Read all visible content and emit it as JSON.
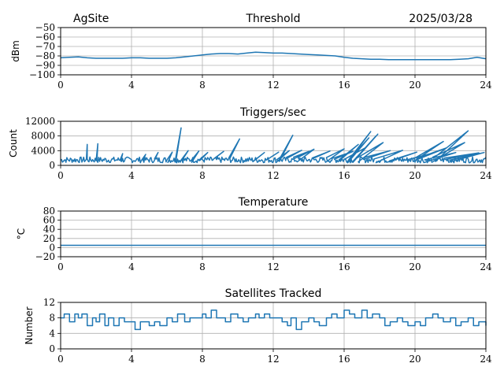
{
  "header": {
    "site": "AgSite",
    "date": "2025/03/28"
  },
  "line_color": "#1f77b4",
  "chart_data": [
    {
      "type": "line",
      "title": "Threshold",
      "ylabel": "dBm",
      "xlim": [
        0,
        24
      ],
      "ylim": [
        -100,
        -50
      ],
      "xticks": [
        0,
        4,
        8,
        12,
        16,
        20,
        24
      ],
      "xtick_labels": [
        "0",
        "4",
        "8",
        "12",
        "16",
        "20",
        "24"
      ],
      "yticks": [
        -100,
        -90,
        -80,
        -70,
        -60,
        -50
      ],
      "ytick_labels": [
        "−100",
        "−90",
        "−80",
        "−70",
        "−60",
        "−50"
      ],
      "grid": true,
      "series": [
        {
          "x": [
            0,
            0.5,
            1,
            1.5,
            2,
            2.5,
            3,
            3.5,
            4,
            4.5,
            5,
            5.5,
            6,
            6.5,
            7,
            7.5,
            8,
            8.5,
            9,
            9.5,
            10,
            10.5,
            11,
            11.5,
            12,
            12.5,
            13,
            13.5,
            14,
            14.5,
            15,
            15.5,
            16,
            16.5,
            17,
            17.5,
            18,
            18.5,
            19,
            19.5,
            20,
            20.5,
            21,
            21.5,
            22,
            22.5,
            23,
            23.5,
            24
          ],
          "y": [
            -82,
            -81.5,
            -81,
            -82,
            -82.5,
            -82.5,
            -82.5,
            -82.5,
            -82,
            -82,
            -82.5,
            -82.5,
            -82.5,
            -82,
            -81,
            -80,
            -79,
            -78,
            -77.5,
            -77.5,
            -78,
            -77,
            -76,
            -76.5,
            -77,
            -77,
            -77.5,
            -78,
            -78.5,
            -79,
            -79.5,
            -80,
            -81.5,
            -82.5,
            -83,
            -83.5,
            -83.5,
            -84,
            -84,
            -84,
            -84,
            -84,
            -84,
            -84,
            -84,
            -83.5,
            -83,
            -81.5,
            -83
          ]
        }
      ]
    },
    {
      "type": "line",
      "title": "Triggers/sec",
      "ylabel": "Count",
      "xlim": [
        0,
        24
      ],
      "ylim": [
        0,
        12000
      ],
      "xticks": [
        0,
        4,
        8,
        12,
        16,
        20,
        24
      ],
      "xtick_labels": [
        "0",
        "4",
        "8",
        "12",
        "16",
        "20",
        "24"
      ],
      "yticks": [
        0,
        4000,
        8000,
        12000
      ],
      "ytick_labels": [
        "0",
        "4000",
        "8000",
        "12000"
      ],
      "grid": true,
      "series": [
        {
          "base": 1500,
          "spikes": [
            [
              1.5,
              5700
            ],
            [
              2.1,
              5900
            ],
            [
              3.5,
              3200
            ],
            [
              4.8,
              3000
            ],
            [
              5.5,
              3500
            ],
            [
              6.3,
              3600
            ],
            [
              6.8,
              10200
            ],
            [
              7.2,
              4000
            ],
            [
              7.8,
              3900
            ],
            [
              8.3,
              3500
            ],
            [
              9.2,
              3800
            ],
            [
              10.1,
              7200
            ],
            [
              11.5,
              3500
            ],
            [
              12.3,
              3600
            ],
            [
              12.9,
              4000
            ],
            [
              13.1,
              8200
            ],
            [
              13.6,
              4100
            ],
            [
              14.0,
              3800
            ],
            [
              14.3,
              4400
            ],
            [
              15.2,
              3900
            ],
            [
              16.0,
              4500
            ],
            [
              16.5,
              3800
            ],
            [
              16.8,
              5700
            ],
            [
              17.2,
              4800
            ],
            [
              17.4,
              7500
            ],
            [
              17.5,
              9200
            ],
            [
              17.8,
              8000
            ],
            [
              17.9,
              8500
            ],
            [
              18.2,
              6200
            ],
            [
              18.6,
              4000
            ],
            [
              19.3,
              4100
            ],
            [
              20.1,
              3600
            ],
            [
              21.1,
              3500
            ],
            [
              21.6,
              6500
            ],
            [
              21.8,
              4800
            ],
            [
              22.3,
              3500
            ],
            [
              22.8,
              6200
            ],
            [
              23.0,
              9400
            ],
            [
              23.6,
              3400
            ],
            [
              23.9,
              3500
            ]
          ]
        }
      ]
    },
    {
      "type": "line",
      "title": "Temperature",
      "ylabel": "°C",
      "xlim": [
        0,
        24
      ],
      "ylim": [
        -20,
        80
      ],
      "xticks": [
        0,
        4,
        8,
        12,
        16,
        20,
        24
      ],
      "xtick_labels": [
        "0",
        "4",
        "8",
        "12",
        "16",
        "20",
        "24"
      ],
      "yticks": [
        -20,
        0,
        20,
        40,
        60,
        80
      ],
      "ytick_labels": [
        "−20",
        "0",
        "20",
        "40",
        "60",
        "80"
      ],
      "grid": true,
      "series": [
        {
          "x": [
            0,
            24
          ],
          "y": [
            5,
            5
          ]
        }
      ]
    },
    {
      "type": "line",
      "title": "Satellites Tracked",
      "ylabel": "Number",
      "xlim": [
        0,
        24
      ],
      "ylim": [
        0,
        12
      ],
      "xticks": [
        0,
        4,
        8,
        12,
        16,
        20,
        24
      ],
      "xtick_labels": [
        "0",
        "4",
        "8",
        "12",
        "16",
        "20",
        "24"
      ],
      "yticks": [
        0,
        4,
        8,
        12
      ],
      "ytick_labels": [
        "0",
        "4",
        "8",
        "12"
      ],
      "grid": true,
      "series": [
        {
          "step": true,
          "x": [
            0,
            0.2,
            0.5,
            0.8,
            1.0,
            1.2,
            1.5,
            1.8,
            2.0,
            2.2,
            2.5,
            2.7,
            3.0,
            3.3,
            3.6,
            4.0,
            4.2,
            4.5,
            4.8,
            5.0,
            5.3,
            5.6,
            6.0,
            6.3,
            6.6,
            7.0,
            7.3,
            7.6,
            8.0,
            8.2,
            8.5,
            8.8,
            9.0,
            9.3,
            9.6,
            10.0,
            10.3,
            10.6,
            11.0,
            11.2,
            11.5,
            11.8,
            12.0,
            12.3,
            12.5,
            12.8,
            13.0,
            13.3,
            13.6,
            14.0,
            14.3,
            14.6,
            15.0,
            15.3,
            15.6,
            16.0,
            16.3,
            16.6,
            17.0,
            17.3,
            17.6,
            18.0,
            18.3,
            18.6,
            19.0,
            19.3,
            19.6,
            20.0,
            20.3,
            20.6,
            21.0,
            21.3,
            21.6,
            22.0,
            22.3,
            22.6,
            23.0,
            23.3,
            23.6,
            24.0
          ],
          "y": [
            8,
            9,
            7,
            9,
            8,
            9,
            6,
            8,
            7,
            9,
            6,
            8,
            6,
            8,
            7,
            7,
            5,
            7,
            7,
            6,
            7,
            6,
            8,
            7,
            9,
            7,
            8,
            8,
            9,
            8,
            10,
            8,
            8,
            7,
            9,
            8,
            7,
            8,
            9,
            8,
            9,
            8,
            8,
            8,
            7,
            6,
            8,
            5,
            7,
            8,
            7,
            6,
            8,
            9,
            8,
            10,
            9,
            8,
            10,
            8,
            9,
            8,
            6,
            7,
            8,
            7,
            6,
            7,
            6,
            8,
            9,
            8,
            7,
            8,
            6,
            7,
            8,
            6,
            7,
            6
          ]
        }
      ]
    }
  ]
}
